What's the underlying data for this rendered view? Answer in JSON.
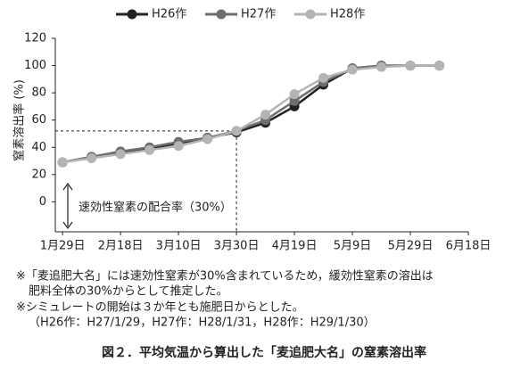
{
  "chart_data": {
    "type": "line",
    "y_label": "窒素溶出率 (%)",
    "x": [
      0,
      10,
      20,
      30,
      40,
      50,
      60,
      70,
      80,
      90,
      100,
      110,
      120,
      130
    ],
    "series": [
      {
        "name": "H26作",
        "color": "#222222",
        "values": [
          29,
          33,
          36,
          39,
          43,
          47,
          51,
          58,
          70,
          86,
          98,
          100,
          100,
          100
        ]
      },
      {
        "name": "H27作",
        "color": "#6e6e6e",
        "values": [
          29,
          33,
          37,
          40,
          44,
          47,
          52,
          60,
          74,
          88,
          98,
          100,
          100,
          100
        ]
      },
      {
        "name": "H28作",
        "color": "#b4b4b4",
        "values": [
          29,
          32,
          35,
          38,
          41,
          46,
          52,
          64,
          79,
          91,
          97,
          99,
          100,
          100
        ]
      }
    ],
    "xlim": [
      -2.5,
      140
    ],
    "xticks": [
      {
        "value": 0,
        "label": "1月29日"
      },
      {
        "value": 20,
        "label": "2月18日"
      },
      {
        "value": 40,
        "label": "3月10日"
      },
      {
        "value": 60,
        "label": "3月30日"
      },
      {
        "value": 80,
        "label": "4月19日"
      },
      {
        "value": 100,
        "label": "5月9日"
      },
      {
        "value": 120,
        "label": "5月29日"
      },
      {
        "value": 140,
        "label": "6月18日"
      }
    ],
    "ylim": [
      -22,
      120
    ],
    "yticks": [
      0,
      20,
      40,
      60,
      80,
      100,
      120
    ],
    "reference_point": [
      60,
      52
    ],
    "annotation": "速効性窒素の配合率（30%）",
    "legend": "top"
  },
  "notes": [
    "※「麦追肥大名」には速効性窒素が30%含まれているため，緩効性窒素の溶出は",
    "肥料全体の30%からとして推定した。",
    "※シミュレートの開始は３か年とも施肥日からとした。",
    "（H26作：H27/1/29，H27作：H28/1/31，H28作：H29/1/30）"
  ],
  "caption": "図２．平均気温から算出した「麦追肥大名」の窒素溶出率"
}
